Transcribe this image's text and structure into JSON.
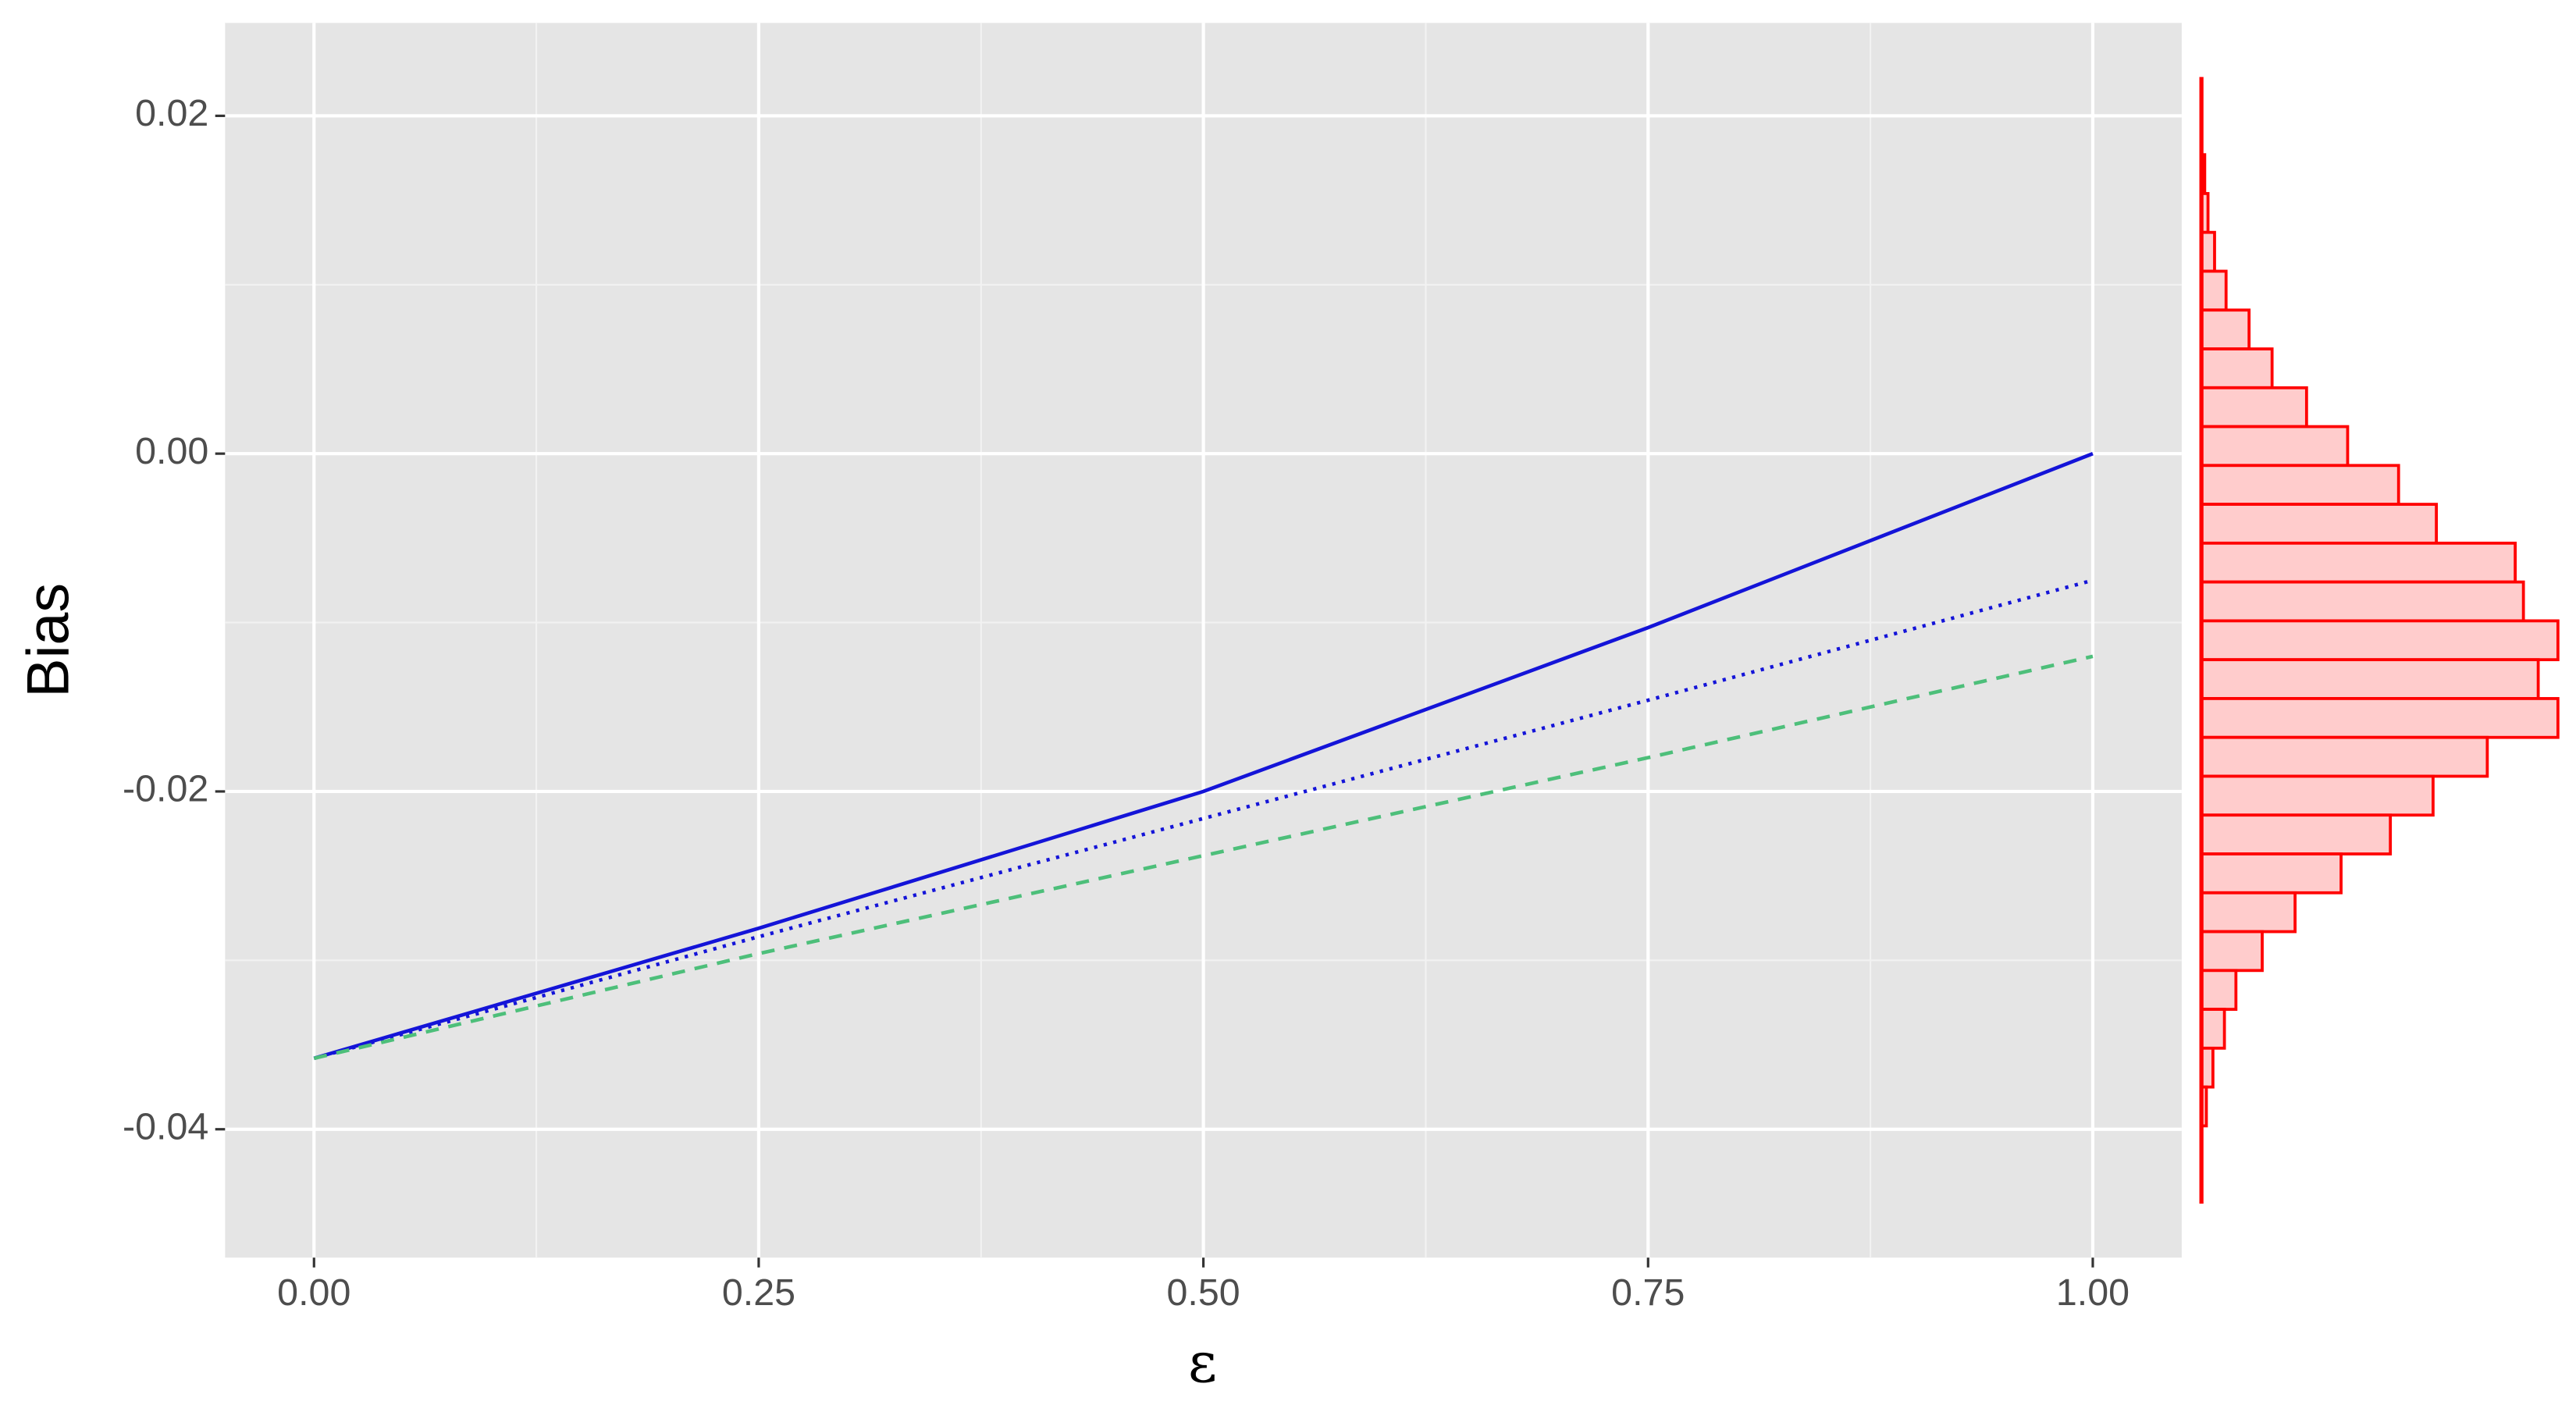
{
  "chart_data": [
    {
      "type": "line",
      "xlabel": "ε",
      "ylabel": "Bias",
      "x": [
        0,
        0.25,
        0.5,
        0.75,
        1
      ],
      "series": [
        {
          "color": "#1414d8",
          "dash": "solid",
          "values": [
            -0.0358,
            -0.0281,
            -0.02,
            -0.0103,
            0
          ]
        },
        {
          "color": "#1414d8",
          "dash": "dotted",
          "values": [
            -0.0358,
            -0.0286,
            -0.0216,
            -0.0146,
            -0.0075
          ]
        },
        {
          "color": "#4dbf7a",
          "dash": "dashed",
          "values": [
            -0.0358,
            -0.0296,
            -0.0238,
            -0.018,
            -0.012
          ]
        }
      ],
      "xlim": [
        -0.05,
        1.05
      ],
      "ylim": [
        -0.0476,
        0.0255
      ],
      "xticks": [
        {
          "value": 0,
          "label": "0.00"
        },
        {
          "value": 0.25,
          "label": "0.25"
        },
        {
          "value": 0.5,
          "label": "0.50"
        },
        {
          "value": 0.75,
          "label": "0.75"
        },
        {
          "value": 1,
          "label": "1.00"
        }
      ],
      "yticks": [
        {
          "value": 0.02,
          "label": "0.02"
        },
        {
          "value": 0,
          "label": "0.00"
        },
        {
          "value": -0.02,
          "label": "-0.02"
        },
        {
          "value": -0.04,
          "label": "-0.04"
        }
      ],
      "x_minor_grid": [
        0.125,
        0.375,
        0.625,
        0.875
      ],
      "y_minor_grid": [
        0.01,
        -0.01,
        -0.03
      ],
      "grid": true
    },
    {
      "type": "histogram",
      "orientation": "horizontal",
      "color": "#ff0000",
      "fill": "#ffcccc",
      "bins": [
        0.0223,
        0.02,
        0.0177,
        0.0154,
        0.0131,
        0.0108,
        0.0085,
        0.0062,
        0.0039,
        0.0016,
        -0.0007,
        -0.003,
        -0.0053,
        -0.0076,
        -0.0099,
        -0.0122,
        -0.0145,
        -0.0168,
        -0.0191,
        -0.0214,
        -0.0237,
        -0.026,
        -0.0283,
        -0.0306,
        -0.0329,
        -0.0352,
        -0.0375,
        -0.0398,
        -0.0421,
        -0.0444
      ],
      "values": [
        0,
        0,
        2,
        4,
        8,
        15,
        29,
        43,
        64,
        89,
        120,
        143,
        191,
        196,
        217,
        205,
        217,
        174,
        141,
        115,
        85,
        57,
        37,
        21,
        14,
        7,
        3,
        0,
        0
      ],
      "xlim": [
        0,
        228
      ],
      "ylim": [
        -0.0476,
        0.0255
      ]
    }
  ]
}
